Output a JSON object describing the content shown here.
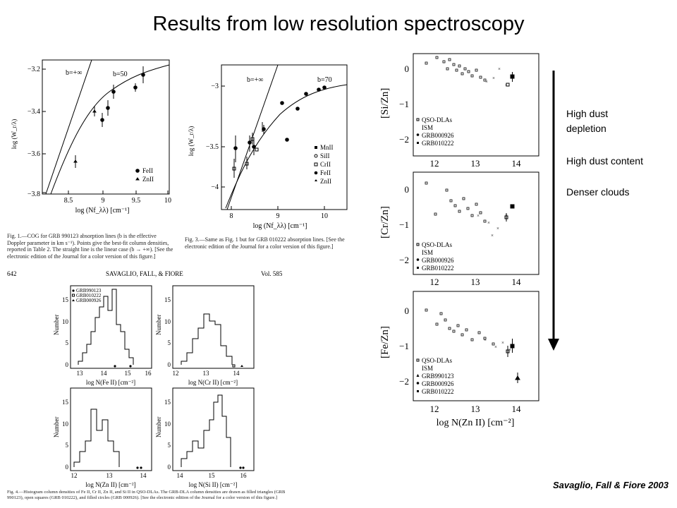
{
  "slide": {
    "title": "Results from low resolution spectroscopy",
    "side_notes": [
      "High dust depletion",
      "High dust content",
      "Denser clouds"
    ],
    "credit": "Savaglio, Fall & Fiore 2003"
  },
  "fig1": {
    "ylabel": "log (W_r/λ)",
    "xlabel": "log (Nf_λλ) [cm⁻¹]",
    "yticks": [
      "−3.2",
      "−3.4",
      "−3.6",
      "−3.8"
    ],
    "xticks": [
      "8.5",
      "9",
      "9.5",
      "10"
    ],
    "label_inf": "b=+∞",
    "label_b": "b=50",
    "legend": [
      "FeII",
      "ZnII"
    ],
    "caption": "Fig. 1.—COG for GRB 990123 absorption lines (b is the effective Doppler parameter in km s⁻¹). Points give the best-fit column densities, reported in Table 2. The straight line is the linear case (b → +∞). [See the electronic edition of the Journal for a color version of this figure.]"
  },
  "fig3": {
    "ylabel": "log (W_r/λ)",
    "xlabel": "log (Nf_λλ) [cm⁻¹]",
    "yticks": [
      "−3",
      "−3.5",
      "−4"
    ],
    "xticks": [
      "8",
      "9",
      "10"
    ],
    "label_inf": "b=+∞",
    "label_b": "b=70",
    "legend": [
      "MnII",
      "SiII",
      "CrII",
      "FeII",
      "ZnII"
    ],
    "caption": "Fig. 3.—Same as Fig. 1 but for GRB 010222 absorption lines. [See the electronic edition of the Journal for a color version of this figure.]"
  },
  "page_header": {
    "page": "642",
    "authors": "SAVAGLIO, FALL, & FIORE",
    "vol": "Vol. 585"
  },
  "fig4": {
    "ylabel": "Number",
    "yticks": [
      "0",
      "5",
      "10",
      "15"
    ],
    "legend": [
      "GRB990123",
      "GRB010222",
      "GRB000926"
    ],
    "panels": [
      {
        "xlabel": "log N(Fe II) [cm⁻²]",
        "xticks": [
          "13",
          "14",
          "15",
          "16"
        ]
      },
      {
        "xlabel": "log N(Cr II) [cm⁻²]",
        "xticks": [
          "12",
          "13",
          "14"
        ]
      },
      {
        "xlabel": "log N(Zn II) [cm⁻²]",
        "xticks": [
          "12",
          "13",
          "14"
        ]
      },
      {
        "xlabel": "log N(Si II) [cm⁻²]",
        "xticks": [
          "14",
          "15",
          "16"
        ]
      }
    ],
    "caption": "Fig. 4.—Histogram column densities of Fe II, Cr II, Zn II, and Si II in QSO-DLAs. The GRB-DLA column densities are drawn as filled triangles (GRB 990123), open squares (GRB 010222), and filled circles (GRB 000926). [See the electronic edition of the Journal for a color version of this figure.]"
  },
  "ratio_panels": {
    "ylabels": [
      "[Si/Zn]",
      "[Cr/Zn]",
      "[Fe/Zn]"
    ],
    "yticks": [
      "0",
      "−1",
      "−2"
    ],
    "xticks": [
      "12",
      "13",
      "14"
    ],
    "xlabel": "log N(Zn II) [cm⁻²]",
    "legends": [
      [
        "QSO-DLAs",
        "ISM",
        "GRB000926",
        "GRB010222"
      ],
      [
        "QSO-DLAs",
        "ISM",
        "GRB000926",
        "GRB010222"
      ],
      [
        "QSO-DLAs",
        "ISM",
        "GRB990123",
        "GRB000926",
        "GRB010222"
      ]
    ]
  }
}
